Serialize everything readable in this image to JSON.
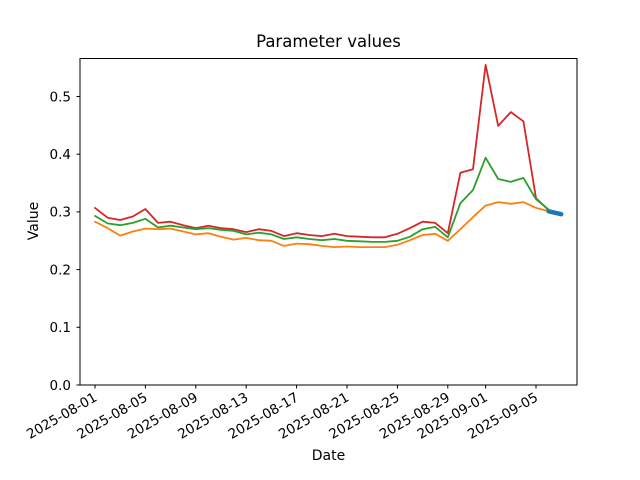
{
  "chart_data": {
    "type": "line",
    "title": "Parameter values",
    "xlabel": "Date",
    "ylabel": "Value",
    "ylim": [
      0.0,
      0.566
    ],
    "grid": false,
    "legend": "none",
    "x_dates": [
      "2025-08-01",
      "2025-08-02",
      "2025-08-03",
      "2025-08-04",
      "2025-08-05",
      "2025-08-06",
      "2025-08-07",
      "2025-08-08",
      "2025-08-09",
      "2025-08-10",
      "2025-08-11",
      "2025-08-12",
      "2025-08-13",
      "2025-08-14",
      "2025-08-15",
      "2025-08-16",
      "2025-08-17",
      "2025-08-18",
      "2025-08-19",
      "2025-08-20",
      "2025-08-21",
      "2025-08-22",
      "2025-08-23",
      "2025-08-24",
      "2025-08-25",
      "2025-08-26",
      "2025-08-27",
      "2025-08-28",
      "2025-08-29",
      "2025-08-30",
      "2025-08-31",
      "2025-09-01",
      "2025-09-02",
      "2025-09-03",
      "2025-09-04",
      "2025-09-05",
      "2025-09-06"
    ],
    "xtick_labels": [
      "2025-08-01",
      "2025-08-05",
      "2025-08-09",
      "2025-08-13",
      "2025-08-17",
      "2025-08-21",
      "2025-08-25",
      "2025-08-29",
      "2025-09-01",
      "2025-09-05"
    ],
    "ytick_values": [
      0.0,
      0.1,
      0.2,
      0.3,
      0.4,
      0.5
    ],
    "ytick_labels": [
      "0.0",
      "0.1",
      "0.2",
      "0.3",
      "0.4",
      "0.5"
    ],
    "series": [
      {
        "name": "series-red",
        "color": "#d62728",
        "line_width": 1.8,
        "values": [
          0.307,
          0.29,
          0.286,
          0.292,
          0.305,
          0.281,
          0.283,
          0.277,
          0.272,
          0.276,
          0.272,
          0.27,
          0.265,
          0.27,
          0.267,
          0.258,
          0.263,
          0.26,
          0.258,
          0.262,
          0.258,
          0.257,
          0.256,
          0.256,
          0.262,
          0.272,
          0.283,
          0.281,
          0.263,
          0.368,
          0.374,
          0.555,
          0.449,
          0.473,
          0.457,
          0.324,
          0.303
        ]
      },
      {
        "name": "series-green",
        "color": "#2ca02c",
        "line_width": 1.8,
        "values": [
          0.293,
          0.28,
          0.277,
          0.281,
          0.288,
          0.273,
          0.276,
          0.273,
          0.27,
          0.272,
          0.269,
          0.267,
          0.261,
          0.264,
          0.261,
          0.253,
          0.256,
          0.253,
          0.251,
          0.253,
          0.25,
          0.249,
          0.248,
          0.248,
          0.25,
          0.257,
          0.27,
          0.274,
          0.256,
          0.315,
          0.338,
          0.394,
          0.357,
          0.352,
          0.359,
          0.322,
          0.304
        ]
      },
      {
        "name": "series-orange",
        "color": "#ff7f0e",
        "line_width": 1.8,
        "values": [
          0.283,
          0.272,
          0.259,
          0.266,
          0.271,
          0.27,
          0.271,
          0.266,
          0.261,
          0.263,
          0.257,
          0.252,
          0.255,
          0.251,
          0.25,
          0.241,
          0.245,
          0.244,
          0.241,
          0.239,
          0.24,
          0.239,
          0.239,
          0.239,
          0.243,
          0.251,
          0.26,
          0.262,
          0.25,
          0.27,
          0.291,
          0.311,
          0.317,
          0.314,
          0.317,
          0.307,
          0.301
        ]
      },
      {
        "name": "series-blue-endpoint",
        "color": "#1f77b4",
        "line_width": 4.5,
        "dates": [
          "2025-09-06",
          "2025-09-07"
        ],
        "values": [
          0.301,
          0.296
        ]
      }
    ]
  }
}
